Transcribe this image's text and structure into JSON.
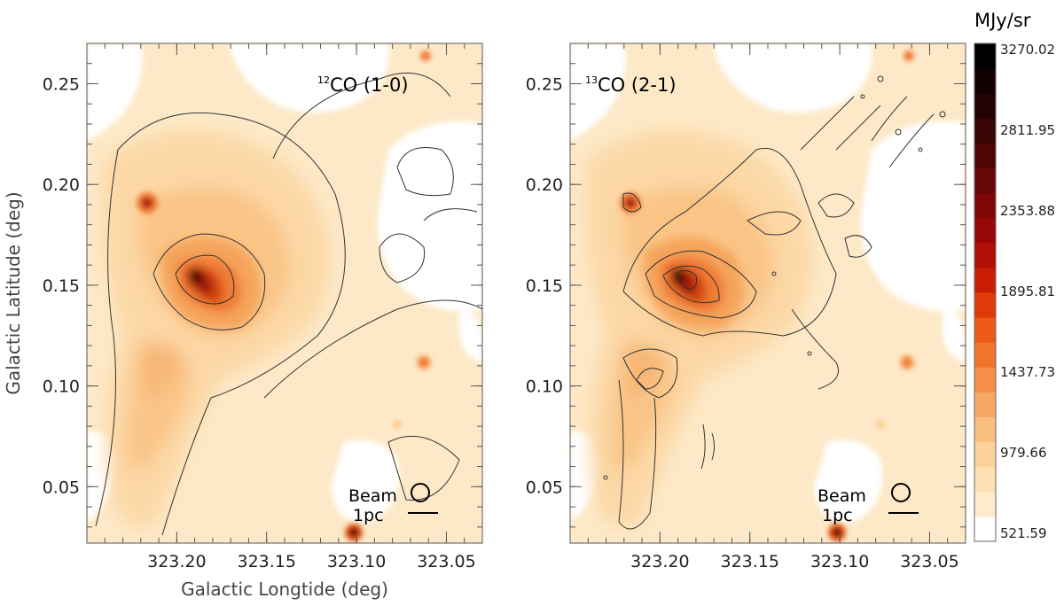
{
  "chart_data": [
    {
      "type": "heatmap",
      "panel_label": "CO (1-0)",
      "panel_label_isotope": "12",
      "xlabel": "Galactic Longtide (deg)",
      "ylabel": "Galactic Latitude (deg)",
      "xlim": [
        323.25,
        323.03
      ],
      "ylim": [
        0.022,
        0.27
      ],
      "x_ticks": [
        323.2,
        323.15,
        323.1,
        323.05
      ],
      "x_tick_labels": [
        "323.20",
        "323.15",
        "323.10",
        "323.05"
      ],
      "y_ticks": [
        0.05,
        0.1,
        0.15,
        0.2,
        0.25
      ],
      "y_tick_labels": [
        "0.05",
        "0.10",
        "0.15",
        "0.20",
        "0.25"
      ],
      "beam_label": "Beam",
      "scale_label": "1pc",
      "contours": "black thin contours",
      "peaks": [
        {
          "l": 323.19,
          "b": 0.15,
          "value": 3270.02
        },
        {
          "l": 323.215,
          "b": 0.19,
          "value": 1900
        },
        {
          "l": 323.105,
          "b": 0.025,
          "value": 2600
        },
        {
          "l": 323.068,
          "b": 0.265,
          "value": 1500
        },
        {
          "l": 323.072,
          "b": 0.11,
          "value": 1400
        }
      ]
    },
    {
      "type": "heatmap",
      "panel_label": "CO (2-1)",
      "panel_label_isotope": "13",
      "xlim": [
        323.25,
        323.03
      ],
      "ylim": [
        0.022,
        0.27
      ],
      "x_ticks": [
        323.2,
        323.15,
        323.1,
        323.05
      ],
      "x_tick_labels": [
        "323.20",
        "323.15",
        "323.10",
        "323.05"
      ],
      "y_ticks": [
        0.05,
        0.1,
        0.15,
        0.2,
        0.25
      ],
      "y_tick_labels": [
        "0.05",
        "0.10",
        "0.15",
        "0.20",
        "0.25"
      ],
      "beam_label": "Beam",
      "scale_label": "1pc",
      "contours": "black thin contours"
    }
  ],
  "colorbar": {
    "unit": "MJy/sr",
    "min": 521.59,
    "max": 3270.02,
    "tick_labels": [
      "3270.02",
      "2811.95",
      "2353.88",
      "1895.81",
      "1437.73",
      "979.66",
      "521.59"
    ],
    "levels": [
      "#ffffff",
      "#fdebcc",
      "#fde0b3",
      "#fcd29a",
      "#fabf80",
      "#f7a865",
      "#f58f47",
      "#f2742c",
      "#ed5a17",
      "#e03a09",
      "#c81d04",
      "#b01006",
      "#980808",
      "#7f0707",
      "#660606",
      "#4e0505",
      "#380404",
      "#240202",
      "#130101",
      "#000000"
    ]
  }
}
